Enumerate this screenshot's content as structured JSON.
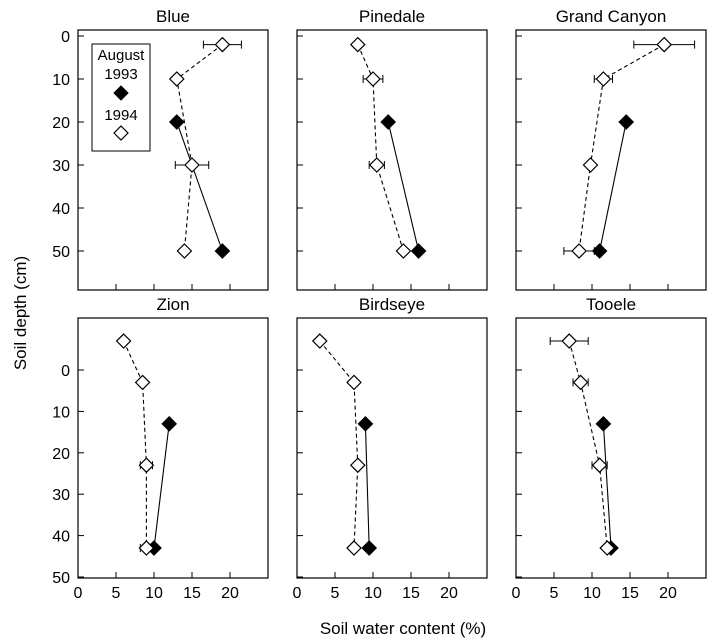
{
  "figure": {
    "ylabel": "Soil depth (cm)",
    "xlabel": "Soil water content (%)",
    "legend": {
      "title": "August",
      "entries": [
        {
          "label": "1993",
          "marker": "filled-diamond"
        },
        {
          "label": "1994",
          "marker": "open-diamond"
        }
      ]
    },
    "x_ticks": [
      "0",
      "5",
      "10",
      "15",
      "20"
    ],
    "top_row_y_ticks": [
      "0",
      "10",
      "20",
      "30",
      "40",
      "50"
    ],
    "bottom_row_y_ticks": [
      "0",
      "10",
      "20",
      "30",
      "40",
      "50"
    ]
  },
  "chart_data": [
    {
      "type": "line",
      "title": "Blue",
      "xlim": [
        0,
        25
      ],
      "ylim": [
        0,
        58
      ],
      "series": [
        {
          "name": "1993",
          "line": "solid",
          "marker": "filled-diamond",
          "points": [
            {
              "x": 13,
              "y": 20
            },
            {
              "x": 19,
              "y": 50
            }
          ]
        },
        {
          "name": "1994",
          "line": "dashed",
          "marker": "open-diamond",
          "points": [
            {
              "x": 19,
              "y": 2,
              "xerr": 2.5
            },
            {
              "x": 13,
              "y": 10
            },
            {
              "x": 15,
              "y": 30,
              "xerr": 2.2
            },
            {
              "x": 14,
              "y": 50
            }
          ]
        }
      ]
    },
    {
      "type": "line",
      "title": "Pinedale",
      "xlim": [
        0,
        25
      ],
      "ylim": [
        0,
        58
      ],
      "series": [
        {
          "name": "1993",
          "line": "solid",
          "marker": "filled-diamond",
          "points": [
            {
              "x": 12,
              "y": 20
            },
            {
              "x": 16,
              "y": 50
            }
          ]
        },
        {
          "name": "1994",
          "line": "dashed",
          "marker": "open-diamond",
          "points": [
            {
              "x": 8,
              "y": 2
            },
            {
              "x": 10,
              "y": 10,
              "xerr": 1.3
            },
            {
              "x": 10.5,
              "y": 30,
              "xerr": 1
            },
            {
              "x": 14,
              "y": 50
            }
          ]
        }
      ]
    },
    {
      "type": "line",
      "title": "Grand Canyon",
      "xlim": [
        0,
        25
      ],
      "ylim": [
        0,
        58
      ],
      "series": [
        {
          "name": "1993",
          "line": "solid",
          "marker": "filled-diamond",
          "points": [
            {
              "x": 14.5,
              "y": 20
            },
            {
              "x": 11,
              "y": 50
            }
          ]
        },
        {
          "name": "1994",
          "line": "dashed",
          "marker": "open-diamond",
          "points": [
            {
              "x": 19.5,
              "y": 2,
              "xerr": 4
            },
            {
              "x": 11.5,
              "y": 10,
              "xerr": 1.2
            },
            {
              "x": 9.8,
              "y": 30
            },
            {
              "x": 8.3,
              "y": 50,
              "xerr": 2
            }
          ]
        }
      ]
    },
    {
      "type": "line",
      "title": "Zion",
      "xlim": [
        0,
        25
      ],
      "ylim": [
        0,
        58
      ],
      "series": [
        {
          "name": "1993",
          "line": "solid",
          "marker": "filled-diamond",
          "points": [
            {
              "x": 12,
              "y": 13
            },
            {
              "x": 10,
              "y": 43
            }
          ]
        },
        {
          "name": "1994",
          "line": "dashed",
          "marker": "open-diamond",
          "points": [
            {
              "x": 6,
              "y": -7
            },
            {
              "x": 8.5,
              "y": 3
            },
            {
              "x": 9,
              "y": 23,
              "xerr": 0.8
            },
            {
              "x": 9,
              "y": 43,
              "xerr": 0.8
            }
          ]
        }
      ]
    },
    {
      "type": "line",
      "title": "Birdseye",
      "xlim": [
        0,
        25
      ],
      "ylim": [
        0,
        58
      ],
      "series": [
        {
          "name": "1993",
          "line": "solid",
          "marker": "filled-diamond",
          "points": [
            {
              "x": 9,
              "y": 13
            },
            {
              "x": 9.5,
              "y": 43
            }
          ]
        },
        {
          "name": "1994",
          "line": "dashed",
          "marker": "open-diamond",
          "points": [
            {
              "x": 3,
              "y": -7
            },
            {
              "x": 7.5,
              "y": 3
            },
            {
              "x": 8,
              "y": 23
            },
            {
              "x": 7.5,
              "y": 43
            }
          ]
        }
      ]
    },
    {
      "type": "line",
      "title": "Tooele",
      "xlim": [
        0,
        25
      ],
      "ylim": [
        0,
        58
      ],
      "series": [
        {
          "name": "1993",
          "line": "solid",
          "marker": "filled-diamond",
          "points": [
            {
              "x": 11.5,
              "y": 13
            },
            {
              "x": 12.5,
              "y": 43
            }
          ]
        },
        {
          "name": "1994",
          "line": "dashed",
          "marker": "open-diamond",
          "points": [
            {
              "x": 7,
              "y": -7,
              "xerr": 2.5
            },
            {
              "x": 8.5,
              "y": 3,
              "xerr": 1
            },
            {
              "x": 11,
              "y": 23,
              "xerr": 1
            },
            {
              "x": 12,
              "y": 43
            }
          ]
        }
      ]
    }
  ]
}
